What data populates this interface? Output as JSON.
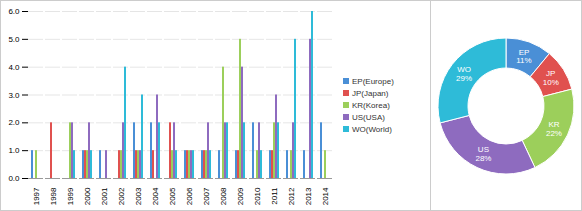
{
  "chart_data": [
    {
      "type": "bar",
      "categories": [
        "1997",
        "1998",
        "1999",
        "2000",
        "2001",
        "2002",
        "2003",
        "2004",
        "2005",
        "2006",
        "2007",
        "2008",
        "2009",
        "2010",
        "2011",
        "2012",
        "2013",
        "2014"
      ],
      "series": [
        {
          "name": "EP(Europe)",
          "color": "#4a8fd6",
          "values": [
            1,
            0,
            0,
            1,
            1,
            0,
            2,
            2,
            0,
            1,
            1,
            1,
            1,
            2,
            1,
            1,
            1,
            2
          ]
        },
        {
          "name": "JP(Japan)",
          "color": "#e0514f",
          "values": [
            0,
            2,
            0,
            1,
            0,
            1,
            1,
            1,
            2,
            1,
            1,
            0,
            1,
            0,
            1,
            0,
            0,
            0
          ]
        },
        {
          "name": "KR(Korea)",
          "color": "#9ccf5b",
          "values": [
            1,
            0,
            2,
            1,
            0,
            1,
            1,
            0,
            1,
            1,
            1,
            4,
            5,
            1,
            2,
            1,
            0,
            1
          ]
        },
        {
          "name": "US(USA)",
          "color": "#8e6bbf",
          "values": [
            0,
            0,
            2,
            2,
            1,
            2,
            1,
            3,
            2,
            1,
            2,
            2,
            4,
            2,
            3,
            2,
            5,
            0
          ]
        },
        {
          "name": "WO(World)",
          "color": "#2ebbd8",
          "values": [
            0,
            0,
            1,
            1,
            0,
            4,
            3,
            2,
            1,
            1,
            1,
            2,
            2,
            1,
            2,
            5,
            6,
            0
          ]
        }
      ],
      "ylim": [
        0,
        6
      ],
      "yticks": [
        0,
        1,
        2,
        3,
        4,
        5,
        6
      ],
      "grid": true,
      "legend": "right"
    },
    {
      "type": "pie",
      "categories": [
        "EP",
        "JP",
        "KR",
        "US",
        "WO"
      ],
      "values": [
        11,
        10,
        22,
        28,
        29
      ],
      "value_labels": [
        "11%",
        "10%",
        "22%",
        "28%",
        "29%"
      ],
      "colors": [
        "#4a8fd6",
        "#e0514f",
        "#9ccf5b",
        "#8e6bbf",
        "#2ebbd8"
      ],
      "data_labels": true
    }
  ]
}
